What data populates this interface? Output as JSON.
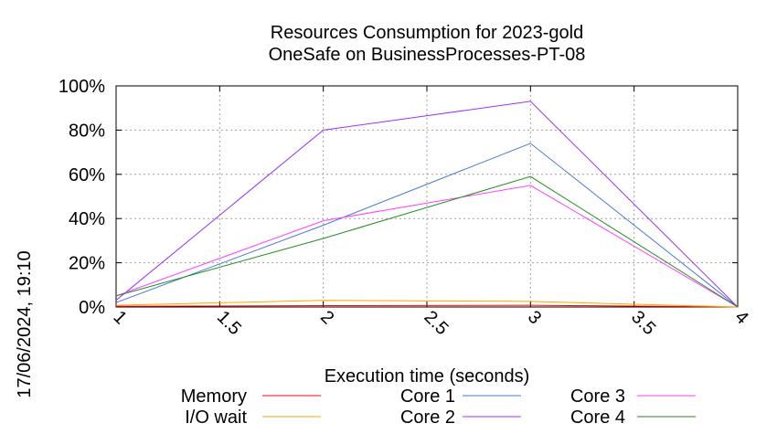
{
  "chart_data": {
    "type": "line",
    "title": "Resources Consumption for 2023-gold",
    "subtitle": "OneSafe on BusinessProcesses-PT-08",
    "xlabel": "Execution time (seconds)",
    "ylabel": "",
    "xlim": [
      1,
      4
    ],
    "ylim": [
      0,
      100
    ],
    "x_ticks": [
      "1",
      "1.5",
      "2",
      "2.5",
      "3",
      "3.5",
      "4"
    ],
    "y_ticks": [
      "0%",
      "20%",
      "40%",
      "60%",
      "80%",
      "100%"
    ],
    "grid": true,
    "legend_position": "bottom",
    "timestamp": "17/06/2024, 19:10",
    "series": [
      {
        "name": "Memory",
        "color": "#ff0000",
        "x": [
          1,
          2,
          3,
          4
        ],
        "values": [
          0.3,
          0.6,
          0.8,
          0
        ]
      },
      {
        "name": "I/O wait",
        "color": "#ffa500",
        "x": [
          1,
          2,
          3,
          4
        ],
        "values": [
          0.8,
          3,
          2.5,
          0
        ]
      },
      {
        "name": "Core 1",
        "color": "#4a78d4",
        "x": [
          1,
          2,
          3,
          4
        ],
        "values": [
          2,
          37,
          74,
          0
        ]
      },
      {
        "name": "Core 2",
        "color": "#9b30ff",
        "x": [
          1,
          2,
          3,
          4
        ],
        "values": [
          3,
          80,
          93,
          0
        ]
      },
      {
        "name": "Core 3",
        "color": "#ff40ff",
        "x": [
          1,
          2,
          3,
          4
        ],
        "values": [
          5,
          39,
          55,
          0
        ]
      },
      {
        "name": "Core 4",
        "color": "#228b22",
        "x": [
          1,
          2,
          3,
          4
        ],
        "values": [
          5,
          31,
          59,
          0
        ]
      }
    ]
  }
}
